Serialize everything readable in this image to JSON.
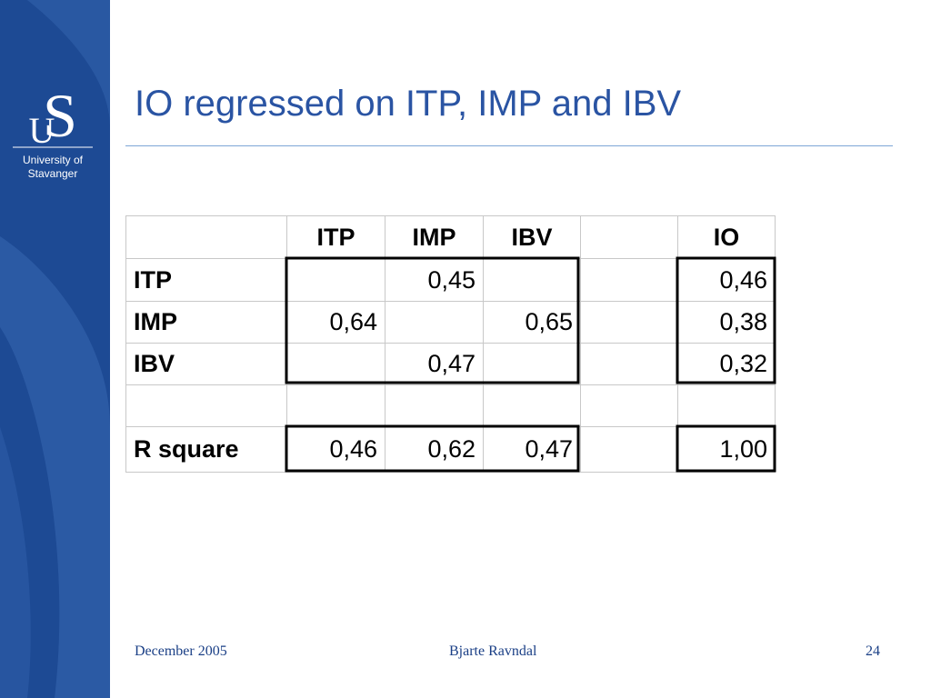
{
  "logo": {
    "initials": [
      "U",
      "S"
    ],
    "name": [
      "University of",
      "Stavanger"
    ]
  },
  "title": "IO regressed on ITP, IMP and IBV",
  "table": {
    "rows": [
      [
        null,
        "ITP",
        "IMP",
        "IBV",
        null,
        "IO"
      ],
      [
        "ITP",
        null,
        "0,45",
        null,
        null,
        "0,46"
      ],
      [
        "IMP",
        "0,64",
        null,
        "0,65",
        null,
        "0,38"
      ],
      [
        "IBV",
        null,
        "0,47",
        null,
        null,
        "0,32"
      ],
      [
        null,
        null,
        null,
        null,
        null,
        null
      ],
      [
        "R square",
        "0,46",
        "0,62",
        "0,47",
        null,
        "1,00"
      ]
    ]
  },
  "footer": {
    "date": "December 2005",
    "author": "Bjarte Ravndal",
    "page": "24"
  }
}
